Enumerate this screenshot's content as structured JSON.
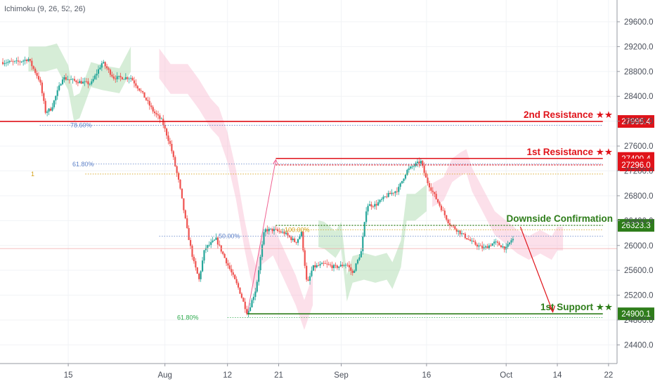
{
  "indicator": "Ichimoku (9, 26, 52, 26)",
  "colors": {
    "up": "#26a69a",
    "down": "#ef5350",
    "resistance": "#e0131a",
    "support": "#2e7d1a",
    "confirm": "#2e7d1a",
    "fib": "#5b7fc7",
    "cloud_green": "#a5d6a7",
    "cloud_red": "#f8bbd0",
    "axis_text": "#4a4f5a"
  },
  "chart_data": {
    "type": "candlestick",
    "y_axis": {
      "side": "right",
      "range": [
        24100,
        29950
      ],
      "ticks": [
        "29600.0",
        "29200.0",
        "28800.0",
        "28400.0",
        "28000.0",
        "27600.0",
        "27200.0",
        "26800.0",
        "26400.0",
        "26000.0",
        "25600.0",
        "25200.0",
        "24800.0",
        "24400.0"
      ]
    },
    "x_axis": {
      "range_days": [
        0,
        100
      ],
      "ticks": [
        {
          "label": "15",
          "day": 9
        },
        {
          "label": "Aug",
          "day": 26
        },
        {
          "label": "12",
          "day": 37
        },
        {
          "label": "21",
          "day": 46
        },
        {
          "label": "Sep",
          "day": 57
        },
        {
          "label": "16",
          "day": 72
        },
        {
          "label": "Oct",
          "day": 86
        },
        {
          "label": "14",
          "day": 95
        },
        {
          "label": "22",
          "day": 104
        }
      ]
    },
    "price_path": [
      {
        "day": 0,
        "price": 28950
      },
      {
        "day": 2,
        "price": 29000
      },
      {
        "day": 4,
        "price": 28650
      },
      {
        "day": 5,
        "price": 28150
      },
      {
        "day": 6,
        "price": 28200
      },
      {
        "day": 8,
        "price": 28700
      },
      {
        "day": 10,
        "price": 28650
      },
      {
        "day": 13,
        "price": 28600
      },
      {
        "day": 15,
        "price": 28950
      },
      {
        "day": 17,
        "price": 28700
      },
      {
        "day": 20,
        "price": 28700
      },
      {
        "day": 22,
        "price": 28450
      },
      {
        "day": 24,
        "price": 28150
      },
      {
        "day": 25.5,
        "price": 28000
      },
      {
        "day": 27,
        "price": 27600
      },
      {
        "day": 28.5,
        "price": 27000
      },
      {
        "day": 30,
        "price": 26200
      },
      {
        "day": 31,
        "price": 25750
      },
      {
        "day": 32,
        "price": 25450
      },
      {
        "day": 33,
        "price": 25950
      },
      {
        "day": 35,
        "price": 26100
      },
      {
        "day": 37,
        "price": 25700
      },
      {
        "day": 39,
        "price": 25300
      },
      {
        "day": 40.5,
        "price": 24900
      },
      {
        "day": 42,
        "price": 25300
      },
      {
        "day": 43.5,
        "price": 26250
      },
      {
        "day": 45,
        "price": 26250
      },
      {
        "day": 47,
        "price": 26200
      },
      {
        "day": 49,
        "price": 26050
      },
      {
        "day": 50,
        "price": 26200
      },
      {
        "day": 51,
        "price": 25350
      },
      {
        "day": 52,
        "price": 25650
      },
      {
        "day": 54,
        "price": 25700
      },
      {
        "day": 56,
        "price": 25650
      },
      {
        "day": 58,
        "price": 25700
      },
      {
        "day": 59,
        "price": 25550
      },
      {
        "day": 60.5,
        "price": 25900
      },
      {
        "day": 61.5,
        "price": 26650
      },
      {
        "day": 63,
        "price": 26650
      },
      {
        "day": 65,
        "price": 26800
      },
      {
        "day": 67,
        "price": 26900
      },
      {
        "day": 68.5,
        "price": 27200
      },
      {
        "day": 70,
        "price": 27300
      },
      {
        "day": 71,
        "price": 27350
      },
      {
        "day": 72,
        "price": 27050
      },
      {
        "day": 74,
        "price": 26700
      },
      {
        "day": 76,
        "price": 26350
      },
      {
        "day": 78,
        "price": 26200
      },
      {
        "day": 80,
        "price": 26050
      },
      {
        "day": 82,
        "price": 25950
      },
      {
        "day": 84,
        "price": 26050
      },
      {
        "day": 86,
        "price": 25950
      },
      {
        "day": 87,
        "price": 26100
      }
    ],
    "levels": [
      {
        "name": "2nd Resistance ★★",
        "value": 27995.4,
        "label": "27995.4",
        "kind": "resistance"
      },
      {
        "name": "1st Resistance ★★",
        "value": 27400.4,
        "label": "27400.4",
        "kind": "resistance"
      },
      {
        "name": "",
        "value": 27296.0,
        "label": "27296.0",
        "kind": "resistance"
      },
      {
        "name": "Downside Confirmation",
        "value": 26323.3,
        "label": "26323.3",
        "kind": "confirm"
      },
      {
        "name": "1st Support ★★",
        "value": 24900.1,
        "label": "24900.1",
        "kind": "support"
      }
    ],
    "fib_labels": [
      {
        "text": "78.60%",
        "price": 27935
      },
      {
        "text": "61.80%",
        "price": 27310
      },
      {
        "text": "1",
        "price": 27150
      },
      {
        "text": "50.00%",
        "price": 26150
      },
      {
        "text": "100.00%",
        "price": 26250
      },
      {
        "text": "61.80%",
        "price": 24840
      }
    ]
  }
}
